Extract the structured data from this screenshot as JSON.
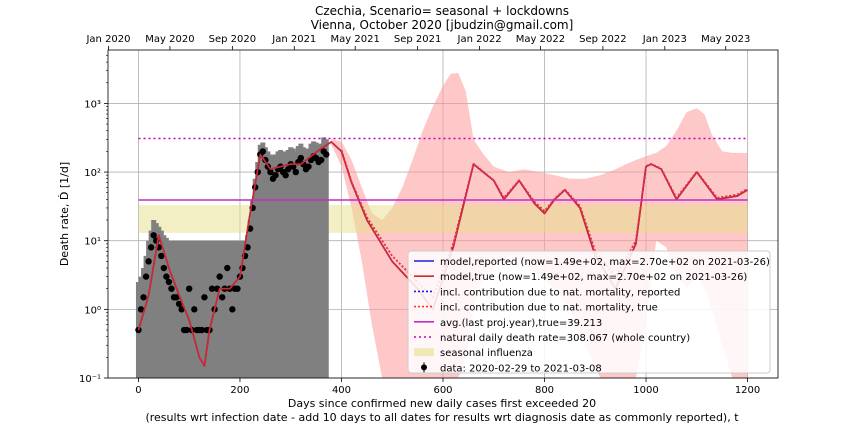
{
  "chart_data": {
    "type": "line",
    "title": "Czechia, Scenario= seasonal + lockdowns",
    "subtitle": "Vienna, October 2020 [jbudzin@gmail.com]",
    "xlabel": "Days since confirmed new daily cases first exceeded 20",
    "xlabel2": "(results wrt infection date - add 10 days to all dates for results wrt diagnosis date as commonly reported), t",
    "ylabel": "Death rate, Ḋ [1/d]",
    "xlim": [
      -60,
      1260
    ],
    "ylim": [
      0.1,
      6000
    ],
    "yscale": "log",
    "grid": true,
    "legend_position": "lower-right",
    "x_ticks": [
      0,
      200,
      400,
      600,
      800,
      1000,
      1200
    ],
    "y_ticks": [
      {
        "value": 0.1,
        "label": "10⁻¹"
      },
      {
        "value": 1,
        "label": "10⁰"
      },
      {
        "value": 10,
        "label": "10¹"
      },
      {
        "value": 100,
        "label": "10²"
      },
      {
        "value": 1000,
        "label": "10³"
      }
    ],
    "top_axis": [
      {
        "x": -59,
        "label": "Jan 2020"
      },
      {
        "x": 62,
        "label": "May 2020"
      },
      {
        "x": 185,
        "label": "Sep 2020"
      },
      {
        "x": 307,
        "label": "Jan 2021"
      },
      {
        "x": 427,
        "label": "May 2021"
      },
      {
        "x": 550,
        "label": "Sep 2021"
      },
      {
        "x": 672,
        "label": "Jan 2022"
      },
      {
        "x": 792,
        "label": "May 2022"
      },
      {
        "x": 915,
        "label": "Sep 2022"
      },
      {
        "x": 1037,
        "label": "Jan 2023"
      },
      {
        "x": 1157,
        "label": "May 2023"
      }
    ],
    "series": [
      {
        "name": "model,reported (now=1.49e+02, max=2.70e+02 on 2021-03-26)",
        "color": "#1f1fdf",
        "x": [
          0,
          20,
          40,
          60,
          80,
          100,
          120,
          130,
          140,
          160,
          180,
          200,
          220,
          240,
          260,
          280,
          300,
          320,
          340,
          360,
          380,
          400,
          420,
          450,
          500,
          550,
          580,
          620,
          660,
          700,
          720,
          750,
          780,
          800,
          820,
          840,
          870,
          900,
          940,
          980,
          1000,
          1010,
          1030,
          1060,
          1100,
          1140,
          1180,
          1200
        ],
        "values": [
          0.5,
          1.6,
          12,
          4,
          1.6,
          0.7,
          0.2,
          0.15,
          0.5,
          2,
          2,
          3,
          25,
          180,
          110,
          120,
          130,
          130,
          170,
          220,
          275,
          200,
          70,
          20,
          5,
          2,
          1,
          8,
          130,
          75,
          40,
          75,
          35,
          25,
          40,
          55,
          30,
          6,
          2,
          9,
          120,
          130,
          110,
          40,
          100,
          40,
          45,
          55
        ]
      },
      {
        "name": "model,true (now=1.49e+02, max=2.70e+02 on 2021-03-26)",
        "color": "#d62728",
        "x": [
          0,
          20,
          40,
          60,
          80,
          100,
          120,
          130,
          140,
          160,
          180,
          200,
          220,
          240,
          260,
          280,
          300,
          320,
          340,
          360,
          380,
          400,
          420,
          450,
          500,
          550,
          580,
          620,
          660,
          700,
          720,
          750,
          780,
          800,
          820,
          840,
          870,
          900,
          940,
          980,
          1000,
          1010,
          1030,
          1060,
          1100,
          1140,
          1180,
          1200
        ],
        "values": [
          0.5,
          1.6,
          12,
          4,
          1.6,
          0.7,
          0.2,
          0.15,
          0.5,
          2,
          2,
          3,
          25,
          180,
          110,
          120,
          130,
          130,
          170,
          220,
          275,
          200,
          70,
          20,
          5,
          2,
          1,
          8,
          130,
          75,
          40,
          75,
          35,
          25,
          40,
          55,
          30,
          6,
          2,
          9,
          120,
          130,
          110,
          40,
          100,
          40,
          45,
          55
        ]
      },
      {
        "name": "incl. contribution due to nat. mortality, reported",
        "color": "#1f1fdf",
        "x": [
          400,
          420,
          450,
          500,
          550,
          580,
          620,
          660,
          700,
          720,
          750,
          780,
          800,
          820,
          840,
          870,
          900,
          940,
          980,
          1000,
          1010,
          1030,
          1060,
          1100,
          1140,
          1180,
          1200
        ],
        "values": [
          210,
          72,
          22,
          6,
          2.5,
          1.5,
          9,
          132,
          76,
          42,
          76,
          37,
          27,
          41,
          56,
          32,
          7,
          3,
          10,
          122,
          132,
          112,
          42,
          102,
          42,
          47,
          57
        ]
      },
      {
        "name": "incl. contribution due to nat. mortality, true",
        "color": "#ff3030",
        "x": [
          400,
          420,
          450,
          500,
          550,
          580,
          620,
          660,
          700,
          720,
          750,
          780,
          800,
          820,
          840,
          870,
          900,
          940,
          980,
          1000,
          1010,
          1030,
          1060,
          1100,
          1140,
          1180,
          1200
        ],
        "values": [
          210,
          72,
          22,
          6,
          2.5,
          1.5,
          9,
          132,
          76,
          42,
          76,
          37,
          27,
          41,
          56,
          32,
          7,
          3,
          10,
          122,
          132,
          112,
          42,
          102,
          42,
          47,
          57
        ]
      },
      {
        "name": "avg.(last proj.year),true=39.213",
        "color": "#bf2fbf",
        "x": [
          0,
          1200
        ],
        "values": [
          39.213,
          39.213
        ]
      },
      {
        "name": "natural daily death rate=308.067 (whole country)",
        "color": "#bf00bf",
        "x": [
          0,
          1200
        ],
        "values": [
          308.067,
          308.067
        ]
      }
    ],
    "bands": [
      {
        "name": "seasonal influenza",
        "color": "#e6e08a",
        "x": [
          0,
          1200
        ],
        "low": 13,
        "high": 33
      }
    ],
    "uncertainty_band": {
      "color": "#ff9a9a",
      "x": [
        380,
        400,
        420,
        440,
        460,
        480,
        500,
        520,
        540,
        560,
        580,
        600,
        615,
        630,
        645,
        660,
        680,
        700,
        730,
        760,
        790,
        820,
        850,
        880,
        910,
        940,
        960,
        980,
        1000,
        1020,
        1040,
        1060,
        1080,
        1100,
        1115,
        1130,
        1150,
        1170,
        1200
      ],
      "low": [
        250,
        120,
        30,
        5,
        0.6,
        0.1,
        0.1,
        0.1,
        0.1,
        0.1,
        0.1,
        0.1,
        0.1,
        0.1,
        0.2,
        1,
        3,
        4,
        6,
        5,
        3,
        2,
        1,
        0.3,
        0.1,
        0.1,
        0.1,
        0.1,
        0.6,
        10,
        8,
        3,
        2,
        3,
        2,
        1,
        0.3,
        0.1,
        0.1
      ],
      "high": [
        300,
        280,
        150,
        60,
        25,
        20,
        30,
        60,
        150,
        400,
        900,
        1800,
        2700,
        2800,
        1500,
        300,
        180,
        120,
        100,
        110,
        100,
        90,
        80,
        80,
        90,
        110,
        130,
        150,
        170,
        190,
        240,
        400,
        750,
        850,
        700,
        350,
        200,
        190,
        190
      ]
    },
    "data_points": {
      "name": "data: 2020-02-29 to 2021-03-08",
      "marker_color": "#000000",
      "errorbar_color": "#808080",
      "x": [
        0,
        5,
        10,
        15,
        20,
        25,
        30,
        35,
        40,
        45,
        50,
        55,
        60,
        65,
        70,
        75,
        80,
        85,
        90,
        95,
        100,
        105,
        110,
        115,
        120,
        125,
        130,
        135,
        140,
        145,
        150,
        155,
        160,
        165,
        170,
        175,
        180,
        185,
        190,
        195,
        200,
        205,
        210,
        215,
        220,
        225,
        230,
        235,
        240,
        245,
        250,
        255,
        260,
        265,
        270,
        275,
        280,
        285,
        290,
        295,
        300,
        305,
        310,
        315,
        320,
        325,
        330,
        335,
        340,
        345,
        350,
        355,
        360,
        365,
        370
      ],
      "values": [
        0.5,
        1,
        1.5,
        3,
        5,
        8,
        12,
        10,
        8,
        6,
        4,
        3,
        2.5,
        2,
        1.5,
        1.5,
        1.2,
        1,
        0.5,
        0.5,
        2,
        0.5,
        1,
        0.5,
        0.5,
        0.5,
        1.5,
        0.5,
        0.5,
        2,
        1,
        2,
        3,
        1.5,
        2,
        4,
        2,
        1,
        2,
        2,
        3,
        4,
        6,
        8,
        15,
        30,
        60,
        100,
        180,
        200,
        150,
        120,
        100,
        80,
        90,
        110,
        120,
        100,
        90,
        110,
        130,
        120,
        100,
        140,
        160,
        130,
        110,
        120,
        150,
        170,
        160,
        140,
        150,
        200,
        180
      ],
      "err_high": [
        2.5,
        3,
        4,
        6,
        10,
        14,
        20,
        18,
        16,
        14,
        12,
        11,
        10,
        10,
        10,
        10,
        10,
        10,
        10,
        10,
        10,
        10,
        10,
        10,
        10,
        10,
        10,
        10,
        10,
        10,
        10,
        10,
        10,
        10,
        10,
        10,
        10,
        10,
        10,
        10,
        10,
        10,
        10,
        12,
        20,
        40,
        80,
        140,
        250,
        270,
        230,
        200,
        180,
        170,
        180,
        200,
        210,
        200,
        190,
        210,
        230,
        220,
        200,
        240,
        260,
        230,
        210,
        220,
        260,
        280,
        270,
        250,
        260,
        320,
        300
      ]
    }
  }
}
